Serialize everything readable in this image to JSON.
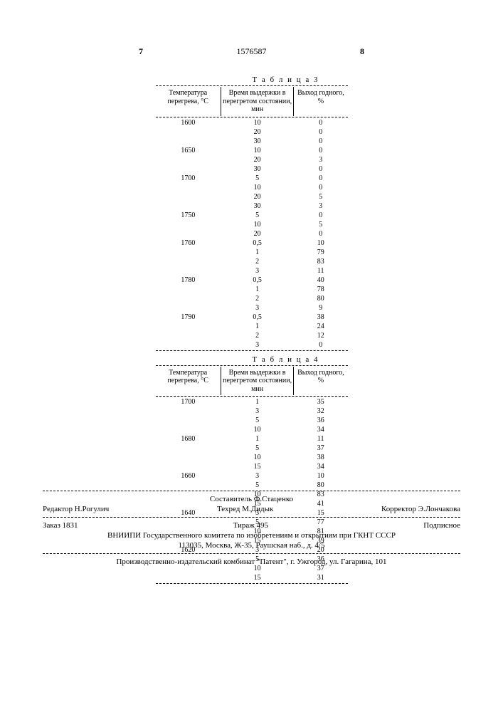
{
  "doc_number": "1576587",
  "page_left": "7",
  "page_right": "8",
  "table3": {
    "caption": "Т а б л и ц а 3",
    "columns": [
      "Температура перегрева, °С",
      "Время выдержки в перегретом состоянии, мин",
      "Выход годного, %"
    ],
    "groups": [
      {
        "temp": "1600",
        "rows": [
          [
            "10",
            "0"
          ],
          [
            "20",
            "0"
          ],
          [
            "30",
            "0"
          ]
        ]
      },
      {
        "temp": "1650",
        "rows": [
          [
            "10",
            "0"
          ],
          [
            "20",
            "3"
          ],
          [
            "30",
            "0"
          ]
        ]
      },
      {
        "temp": "1700",
        "rows": [
          [
            "5",
            "0"
          ],
          [
            "10",
            "0"
          ],
          [
            "20",
            "5"
          ],
          [
            "30",
            "3"
          ]
        ]
      },
      {
        "temp": "1750",
        "rows": [
          [
            "5",
            "0"
          ],
          [
            "10",
            "5"
          ],
          [
            "20",
            "0"
          ]
        ]
      },
      {
        "temp": "1760",
        "rows": [
          [
            "0,5",
            "10"
          ],
          [
            "1",
            "79"
          ],
          [
            "2",
            "83"
          ],
          [
            "3",
            "11"
          ]
        ]
      },
      {
        "temp": "1780",
        "rows": [
          [
            "0,5",
            "40"
          ],
          [
            "1",
            "78"
          ],
          [
            "2",
            "80"
          ],
          [
            "3",
            "9"
          ]
        ]
      },
      {
        "temp": "1790",
        "rows": [
          [
            "0,5",
            "38"
          ],
          [
            "1",
            "24"
          ],
          [
            "2",
            "12"
          ],
          [
            "3",
            "0"
          ]
        ]
      }
    ]
  },
  "table4": {
    "caption": "Т а б л и ц а 4",
    "columns": [
      "Температура перегрева, °С",
      "Время выдержки в перегретом состоянии, мин",
      "Выход годного, %"
    ],
    "groups": [
      {
        "temp": "1700",
        "rows": [
          [
            "1",
            "35"
          ],
          [
            "3",
            "32"
          ],
          [
            "5",
            "36"
          ],
          [
            "10",
            "34"
          ]
        ]
      },
      {
        "temp": "1680",
        "rows": [
          [
            "1",
            "11"
          ],
          [
            "5",
            "37"
          ],
          [
            "10",
            "38"
          ],
          [
            "15",
            "34"
          ]
        ]
      },
      {
        "temp": "1660",
        "rows": [
          [
            "3",
            "10"
          ],
          [
            "5",
            "80"
          ],
          [
            "10",
            "83"
          ],
          [
            "15",
            "41"
          ]
        ]
      },
      {
        "temp": "1640",
        "rows": [
          [
            "3",
            "15"
          ],
          [
            "5",
            "77"
          ],
          [
            "10",
            "81"
          ],
          [
            "15",
            "39"
          ]
        ]
      },
      {
        "temp": "1620",
        "rows": [
          [
            "3",
            "20"
          ],
          [
            "5",
            "36"
          ],
          [
            "10",
            "37"
          ],
          [
            "15",
            "31"
          ]
        ]
      }
    ]
  },
  "footer": {
    "compiler": "Составитель Ф.Стаценко",
    "editor": "Редактор Н.Рогулич",
    "tech_editor": "Техред М.Дидык",
    "corrector": "Корректор Э.Лончакова",
    "order": "Заказ 1831",
    "tirage": "Тираж 495",
    "subscription": "Подписное",
    "org_line1": "ВНИИПИ Государственного комитета по изобретениям и открытиям при ГКНТ СССР",
    "org_line2": "113035, Москва, Ж-35, Раушская наб., д. 4/5",
    "producer": "Производственно-издательский комбинат \"Патент\", г. Ужгород, ул. Гагарина, 101"
  }
}
